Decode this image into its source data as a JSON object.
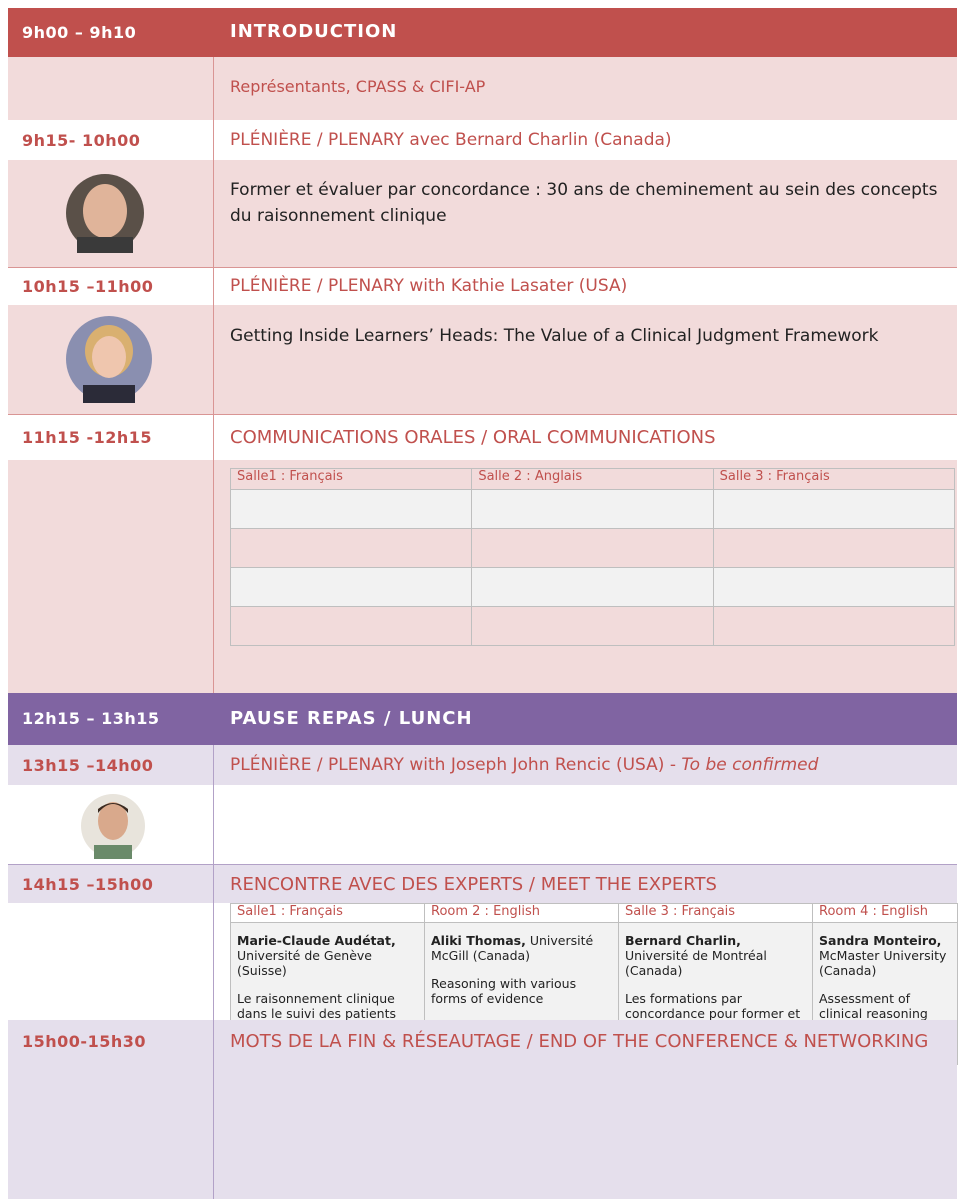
{
  "sessions": [
    {
      "time": "9h00 – 9h10",
      "title": "INTRODUCTION",
      "detail": "Représentants, CPASS & CIFI-AP"
    },
    {
      "time": "9h15- 10h00",
      "title": "PLÉNIÈRE / PLENARY avec Bernard Charlin (Canada)",
      "detail": "Former et évaluer par concordance : 30 ans de cheminement au sein des concepts du raisonnement clinique"
    },
    {
      "time": "10h15 –11h00",
      "title": "PLÉNIÈRE / PLENARY with Kathie Lasater (USA)",
      "detail": "Getting Inside Learners’ Heads: The Value of a Clinical Judgment Framework"
    },
    {
      "time": "11h15 -12h15",
      "title": "COMMUNICATIONS ORALES / ORAL COMMUNICATIONS",
      "rooms": [
        "Salle1 : Français",
        "Salle 2 : Anglais",
        "Salle 3 : Français"
      ]
    },
    {
      "time": "12h15 – 13h15",
      "title": "PAUSE REPAS / LUNCH"
    },
    {
      "time": "13h15 –14h00",
      "title": "PLÉNIÈRE / PLENARY with Joseph John Rencic (USA) -",
      "note": "To be confirmed"
    },
    {
      "time": "14h15 –15h00",
      "title": "RENCONTRE AVEC DES EXPERTS / MEET THE EXPERTS",
      "experts": [
        {
          "room": "Salle1 : Français",
          "name": "Marie-Claude Audétat,",
          "affiliation": "Université de Genève (Suisse)",
          "topic": "Le raisonnement clinique dans le suivi des patients chroniques"
        },
        {
          "room": "Room 2 : English",
          "name": "Aliki Thomas,",
          "affiliation": "Université McGill (Canada)",
          "topic": "Reasoning with various forms of evidence"
        },
        {
          "room": "Salle 3 : Français",
          "name": "Bernard Charlin,",
          "affiliation": "Université de Montréal (Canada)",
          "topic": "Les formations par concordance pour former et évaluer le raisonnement clinique"
        },
        {
          "room": "Room 4 : English",
          "name": "Sandra Monteiro,",
          "affiliation": "McMaster University (Canada)",
          "topic": "Assessment of clinical reasoning"
        }
      ]
    },
    {
      "time": "15h00-15h30",
      "title": "MOTS DE LA FIN & RÉSEAUTAGE / END OF THE CONFERENCE & NETWORKING"
    }
  ]
}
